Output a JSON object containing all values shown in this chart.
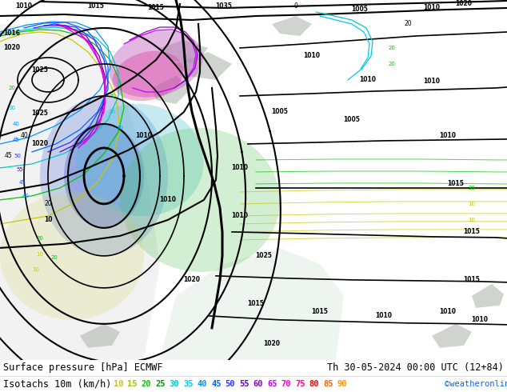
{
  "title_line": "Surface pressure [hPa] ECMWF",
  "date_line": "Th 30-05-2024 00:00 UTC (12+84)",
  "isotach_label": "Isotachs 10m (km/h)",
  "copyright": "©weatheronline.co.uk",
  "isotach_values": [
    "10",
    "15",
    "20",
    "25",
    "30",
    "35",
    "40",
    "45",
    "50",
    "55",
    "60",
    "65",
    "70",
    "75",
    "80",
    "85",
    "90"
  ],
  "isotach_colors": [
    "#c8c800",
    "#96c800",
    "#00c800",
    "#009600",
    "#00c8c8",
    "#00c8ff",
    "#0096ff",
    "#0064ff",
    "#3232ff",
    "#6400c8",
    "#9600c8",
    "#c800ff",
    "#ff00c8",
    "#ff0096",
    "#ff0000",
    "#ff6400",
    "#ff9600"
  ],
  "map_bg_color_land": "#c8f0a0",
  "map_bg_color_sea": "#e8f8e8",
  "legend_bg": "#ffffff",
  "text_color": "#000000",
  "copyright_color": "#0064ff"
}
